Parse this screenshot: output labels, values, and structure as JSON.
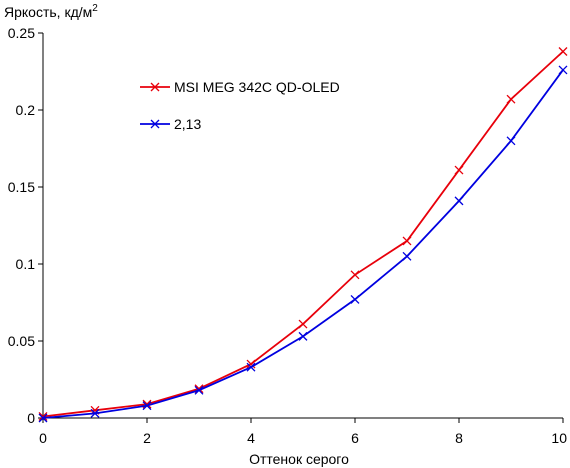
{
  "chart_data": {
    "type": "line",
    "xlabel": "Оттенок серого",
    "ylabel_main": "Яркость, кд/м",
    "ylabel_sup": "2",
    "xlim": [
      0,
      10
    ],
    "ylim": [
      0,
      0.25
    ],
    "x_ticks": [
      "0",
      "2",
      "4",
      "6",
      "8",
      "10"
    ],
    "y_ticks": [
      "0",
      "0.05",
      "0.1",
      "0.15",
      "0.2",
      "0.25"
    ],
    "grid": false,
    "legend_position": "top-center",
    "x": [
      0,
      1,
      2,
      3,
      4,
      5,
      6,
      7,
      8,
      9,
      10
    ],
    "series": [
      {
        "name": "MSI MEG 342C QD-OLED",
        "color": "#e8000b",
        "marker": "x",
        "values": [
          0.001,
          0.005,
          0.009,
          0.019,
          0.035,
          0.061,
          0.093,
          0.115,
          0.161,
          0.207,
          0.238
        ]
      },
      {
        "name": "2,13",
        "color": "#0000e0",
        "marker": "x",
        "values": [
          0.0,
          0.003,
          0.008,
          0.018,
          0.033,
          0.053,
          0.077,
          0.105,
          0.141,
          0.18,
          0.226
        ]
      }
    ]
  }
}
